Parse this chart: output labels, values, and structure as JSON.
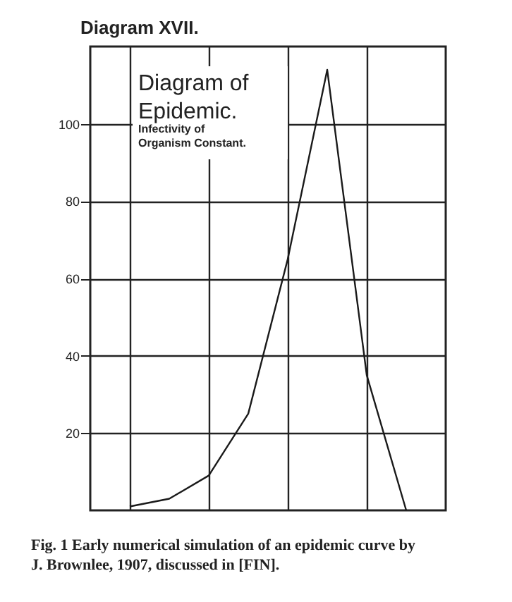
{
  "chart_data": {
    "type": "line",
    "title": "Diagram XVII.",
    "categories": [
      null,
      null,
      null,
      null,
      null,
      null,
      null,
      null
    ],
    "values": [
      1,
      3,
      9,
      25,
      65,
      114,
      35,
      0
    ],
    "color": "#1a1a1a",
    "ylim": [
      0,
      120
    ],
    "yticks": [
      20,
      40,
      60,
      80,
      100
    ],
    "grid": true,
    "tick_labels": "y",
    "annotations": [
      "Diagram of Epidemic.",
      "Infectivity of Organism Constant.",
      "Fig. 1 Early numerical simulation of an epidemic curve by J. Brownlee, 1907, discussed in [FIN]."
    ]
  }
}
